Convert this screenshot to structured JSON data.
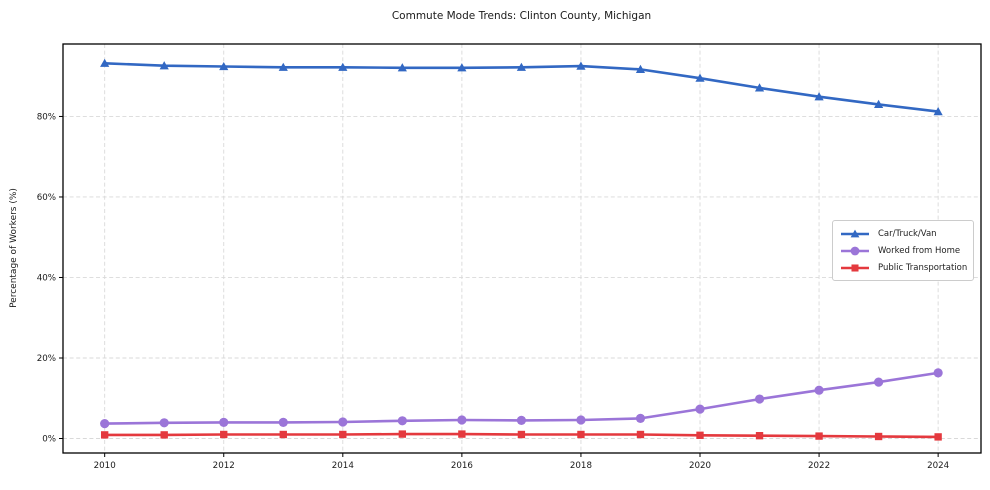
{
  "title": "Commute Mode Trends: Clinton County, Michigan",
  "ylabel": "Percentage of Workers (%)",
  "chart_data": {
    "type": "line",
    "title": "Commute Mode Trends: Clinton County, Michigan",
    "xlabel": "",
    "ylabel": "Percentage of Workers (%)",
    "grid": true,
    "legend_position": "center right",
    "x": [
      2010,
      2011,
      2012,
      2013,
      2014,
      2015,
      2016,
      2017,
      2018,
      2019,
      2020,
      2021,
      2022,
      2023,
      2024
    ],
    "series": [
      {
        "name": "Car/Truck/Van",
        "marker": "triangle",
        "color": "#3268c3",
        "values": [
          93.2,
          92.6,
          92.4,
          92.2,
          92.2,
          92.1,
          92.1,
          92.2,
          92.5,
          91.7,
          89.5,
          87.1,
          84.9,
          83.0,
          81.2
        ]
      },
      {
        "name": "Worked from Home",
        "marker": "circle",
        "color": "#9b75d8",
        "values": [
          3.7,
          3.9,
          4.0,
          4.0,
          4.1,
          4.4,
          4.6,
          4.5,
          4.6,
          5.0,
          7.3,
          9.8,
          12.0,
          14.0,
          16.3
        ]
      },
      {
        "name": "Public Transportation",
        "marker": "square",
        "color": "#e4393e",
        "values": [
          0.9,
          0.9,
          1.0,
          1.0,
          1.0,
          1.1,
          1.1,
          1.0,
          1.0,
          1.0,
          0.8,
          0.7,
          0.6,
          0.5,
          0.4
        ]
      }
    ],
    "x_ticks": [
      {
        "value": 2010,
        "label": "2010"
      },
      {
        "value": 2012,
        "label": "2012"
      },
      {
        "value": 2014,
        "label": "2014"
      },
      {
        "value": 2016,
        "label": "2016"
      },
      {
        "value": 2018,
        "label": "2018"
      },
      {
        "value": 2020,
        "label": "2020"
      },
      {
        "value": 2022,
        "label": "2022"
      },
      {
        "value": 2024,
        "label": "2024"
      }
    ],
    "y_ticks": [
      {
        "value": 0,
        "label": "0%"
      },
      {
        "value": 20,
        "label": "20%"
      },
      {
        "value": 40,
        "label": "40%"
      },
      {
        "value": 60,
        "label": "60%"
      },
      {
        "value": 80,
        "label": "80%"
      }
    ],
    "xlim": [
      2009.3,
      2024.72
    ],
    "ylim": [
      -3.6,
      98.0
    ]
  }
}
